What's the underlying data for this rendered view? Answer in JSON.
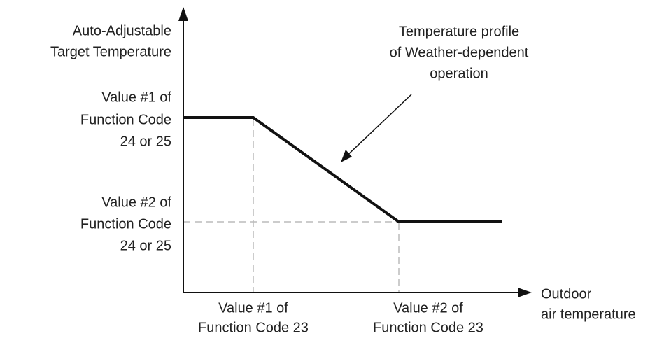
{
  "y_axis_label": [
    "Auto-Adjustable",
    "Target Temperature"
  ],
  "y_value_1": [
    "Value #1 of",
    "Function Code",
    "24 or 25"
  ],
  "y_value_2": [
    "Value #2 of",
    "Function Code",
    "24 or 25"
  ],
  "x_value_1": [
    "Value #1 of",
    "Function Code 23"
  ],
  "x_value_2": [
    "Value #2 of",
    "Function Code 23"
  ],
  "x_axis_label": [
    "Outdoor",
    "air temperature"
  ],
  "annotation": [
    "Temperature profile",
    "of Weather-dependent",
    "operation"
  ]
}
